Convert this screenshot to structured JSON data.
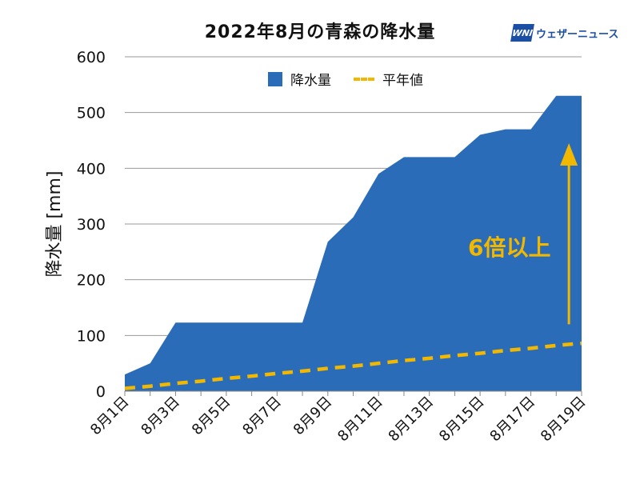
{
  "title": "2022年8月の青森の降水量",
  "logo": {
    "mark": "WNI",
    "text": "ウェザーニュース"
  },
  "annotation": "6倍以上",
  "chart_data": {
    "type": "area",
    "ylabel": "降水量 [mm]",
    "ylim": [
      0,
      600
    ],
    "yticks": [
      "0",
      "100",
      "200",
      "300",
      "400",
      "500",
      "600"
    ],
    "grid": true,
    "legend_position": "top-center",
    "x_tick_labels": [
      "8月1日",
      "8月3日",
      "8月5日",
      "8月7日",
      "8月9日",
      "8月11日",
      "8月13日",
      "8月15日",
      "8月17日",
      "8月19日"
    ],
    "x": [
      1,
      2,
      3,
      4,
      5,
      6,
      7,
      8,
      9,
      10,
      11,
      12,
      13,
      14,
      15,
      16,
      17,
      18,
      19
    ],
    "series": [
      {
        "name": "降水量",
        "type": "area",
        "color": "#2b6cb8",
        "values": [
          30,
          50,
          123,
          123,
          123,
          123,
          123,
          123,
          268,
          312,
          390,
          420,
          420,
          420,
          460,
          470,
          470,
          530,
          530
        ]
      },
      {
        "name": "平年値",
        "type": "dashed-line",
        "color": "#f2b800",
        "values": [
          5,
          9,
          14,
          18,
          23,
          27,
          32,
          36,
          41,
          45,
          50,
          55,
          59,
          64,
          68,
          73,
          77,
          82,
          86
        ]
      }
    ],
    "arrow_color": "#f2b800",
    "arrow_from_value": 120,
    "arrow_to_value": 445,
    "arrow_x": 18.5
  }
}
